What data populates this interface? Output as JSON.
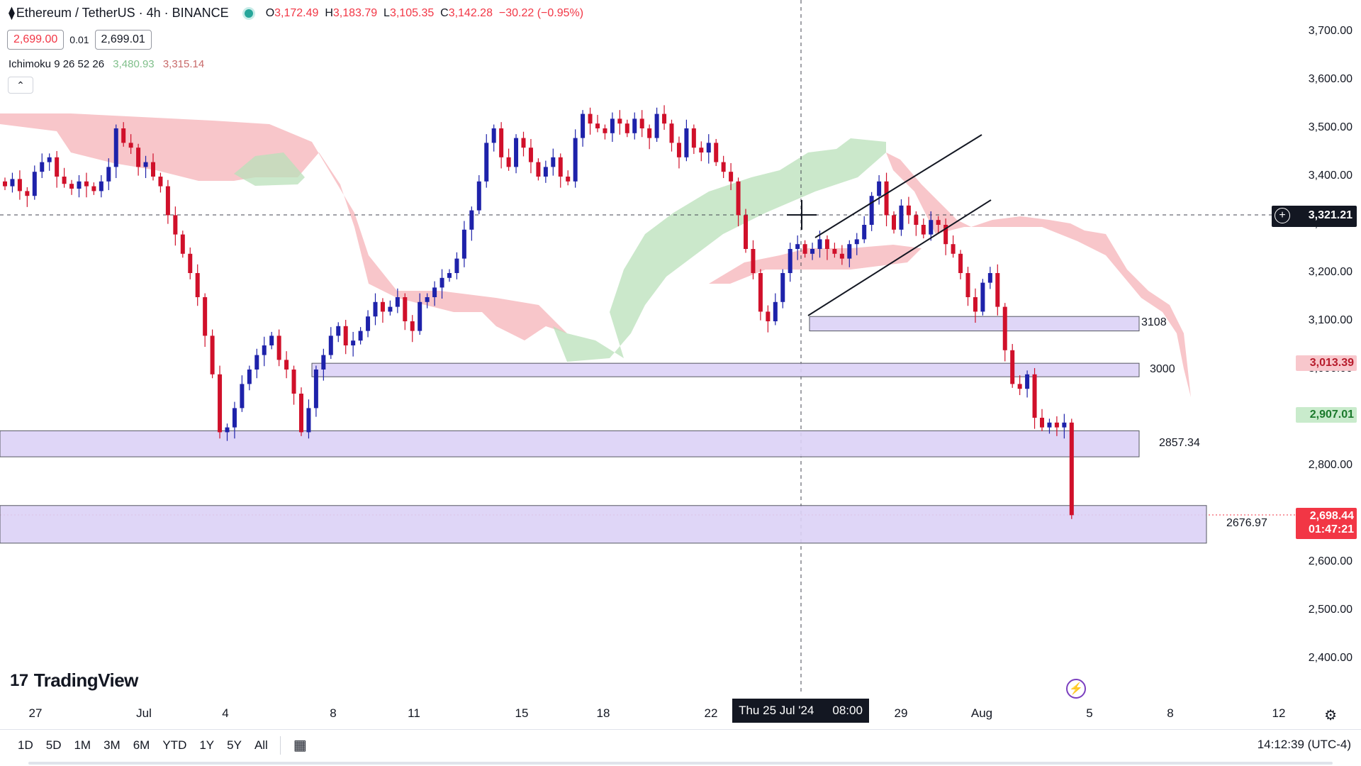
{
  "header": {
    "symbol": "Ethereum / TetherUS · 4h · BINANCE",
    "open_label": "O",
    "open": "3,172.49",
    "high_label": "H",
    "high": "3,183.79",
    "low_label": "L",
    "low": "3,105.35",
    "close_label": "C",
    "close": "3,142.28",
    "change": "−30.22 (−0.95%)"
  },
  "trade": {
    "sell_price": "2,699.00",
    "spread": "0.01",
    "buy_price": "2,699.01"
  },
  "indicator": {
    "name": "Ichimoku 9 26 52 26",
    "value1": "3,480.93",
    "value2": "3,315.14",
    "collapse_icon": "chevron-up-icon"
  },
  "price_axis": {
    "ticks": [
      "3,700.00",
      "3,600.00",
      "3,500.00",
      "3,400.00",
      "3,300.00",
      "3,200.00",
      "3,100.00",
      "3,000.00",
      "2,900.00",
      "2,800.00",
      "2,700.00",
      "2,600.00",
      "2,500.00",
      "2,400.00"
    ],
    "crosshair_price": "3,321.21",
    "badge_kijun": "3,013.39",
    "badge_tenkan": "2,907.01",
    "last_price": "2,698.44",
    "countdown": "01:47:21"
  },
  "zones": [
    {
      "label": "3108",
      "low": 3080,
      "high": 3110
    },
    {
      "label": "3000",
      "low": 2985,
      "high": 3013
    },
    {
      "label": "2857.34",
      "low": 2819,
      "high": 2873
    },
    {
      "label": "2676.97",
      "low": 2640,
      "high": 2718
    }
  ],
  "time_axis": {
    "ticks": [
      "27",
      "Jul",
      "4",
      "8",
      "11",
      "15",
      "18",
      "22",
      "29",
      "Aug",
      "5",
      "8",
      "12"
    ],
    "crosshair_date": "Thu 25 Jul '24",
    "crosshair_time": "08:00"
  },
  "branding": {
    "name": "TradingView"
  },
  "bottom_bar": {
    "ranges": [
      "1D",
      "5D",
      "1M",
      "3M",
      "6M",
      "YTD",
      "1Y",
      "5Y",
      "All"
    ],
    "clock": "14:12:39 (UTC-4)"
  },
  "colors": {
    "up": "#1e22aa",
    "down": "#d0102a",
    "cloud_bull": "#b9e0b9",
    "cloud_bear": "#f5b3b8",
    "zone": "#dcd2f7",
    "zone_border": "#434651"
  },
  "chart_data": {
    "type": "candlestick",
    "price_range": [
      2350,
      3750
    ],
    "last_price": 2698.44,
    "closes": [
      3380,
      3395,
      3370,
      3360,
      3410,
      3430,
      3440,
      3400,
      3385,
      3375,
      3390,
      3380,
      3370,
      3390,
      3420,
      3500,
      3470,
      3460,
      3420,
      3430,
      3400,
      3380,
      3320,
      3280,
      3240,
      3200,
      3150,
      3070,
      2990,
      2870,
      2880,
      2920,
      2970,
      3000,
      3030,
      3050,
      3070,
      3020,
      3000,
      2950,
      2870,
      2920,
      3000,
      3030,
      3070,
      3090,
      3050,
      3060,
      3080,
      3110,
      3140,
      3120,
      3130,
      3150,
      3100,
      3080,
      3140,
      3150,
      3170,
      3190,
      3200,
      3230,
      3290,
      3330,
      3390,
      3470,
      3500,
      3440,
      3420,
      3480,
      3460,
      3430,
      3400,
      3420,
      3440,
      3400,
      3390,
      3480,
      3530,
      3510,
      3500,
      3490,
      3520,
      3510,
      3490,
      3520,
      3500,
      3480,
      3530,
      3510,
      3470,
      3440,
      3500,
      3460,
      3450,
      3470,
      3430,
      3410,
      3390,
      3320,
      3250,
      3200,
      3120,
      3100,
      3140,
      3200,
      3250,
      3260,
      3240,
      3250,
      3270,
      3250,
      3240,
      3230,
      3260,
      3270,
      3300,
      3360,
      3390,
      3320,
      3290,
      3340,
      3320,
      3300,
      3280,
      3310,
      3300,
      3260,
      3240,
      3200,
      3150,
      3120,
      3180,
      3200,
      3130,
      3040,
      2970,
      2960,
      2990,
      2900,
      2880,
      2890,
      2880,
      2890,
      2698
    ]
  }
}
